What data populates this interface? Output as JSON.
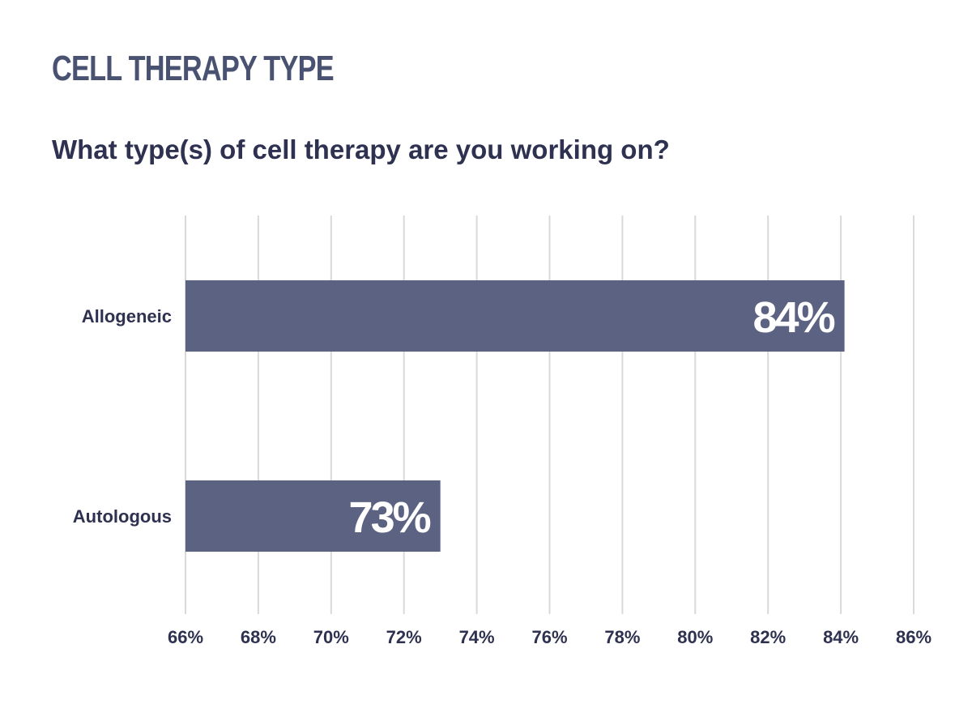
{
  "chart_data": {
    "type": "bar",
    "orientation": "horizontal",
    "title": "CELL THERAPY TYPE",
    "subtitle": "What type(s) of cell therapy are you working on?",
    "categories": [
      "Allogeneic",
      "Autologous"
    ],
    "values": [
      84.1,
      73
    ],
    "data_labels": [
      "84%",
      "73%"
    ],
    "xlim": [
      66,
      86
    ],
    "ticks": [
      66,
      68,
      70,
      72,
      74,
      76,
      78,
      80,
      82,
      84,
      86
    ],
    "tick_labels": [
      "66%",
      "68%",
      "70%",
      "72%",
      "74%",
      "76%",
      "78%",
      "80%",
      "82%",
      "84%",
      "86%"
    ],
    "grid": "vertical",
    "colors": {
      "bar": "#5b6282",
      "grid": "#d9d9d9",
      "text": "#2e3250",
      "title": "#4a5272",
      "label_on_bar": "#ffffff"
    }
  }
}
